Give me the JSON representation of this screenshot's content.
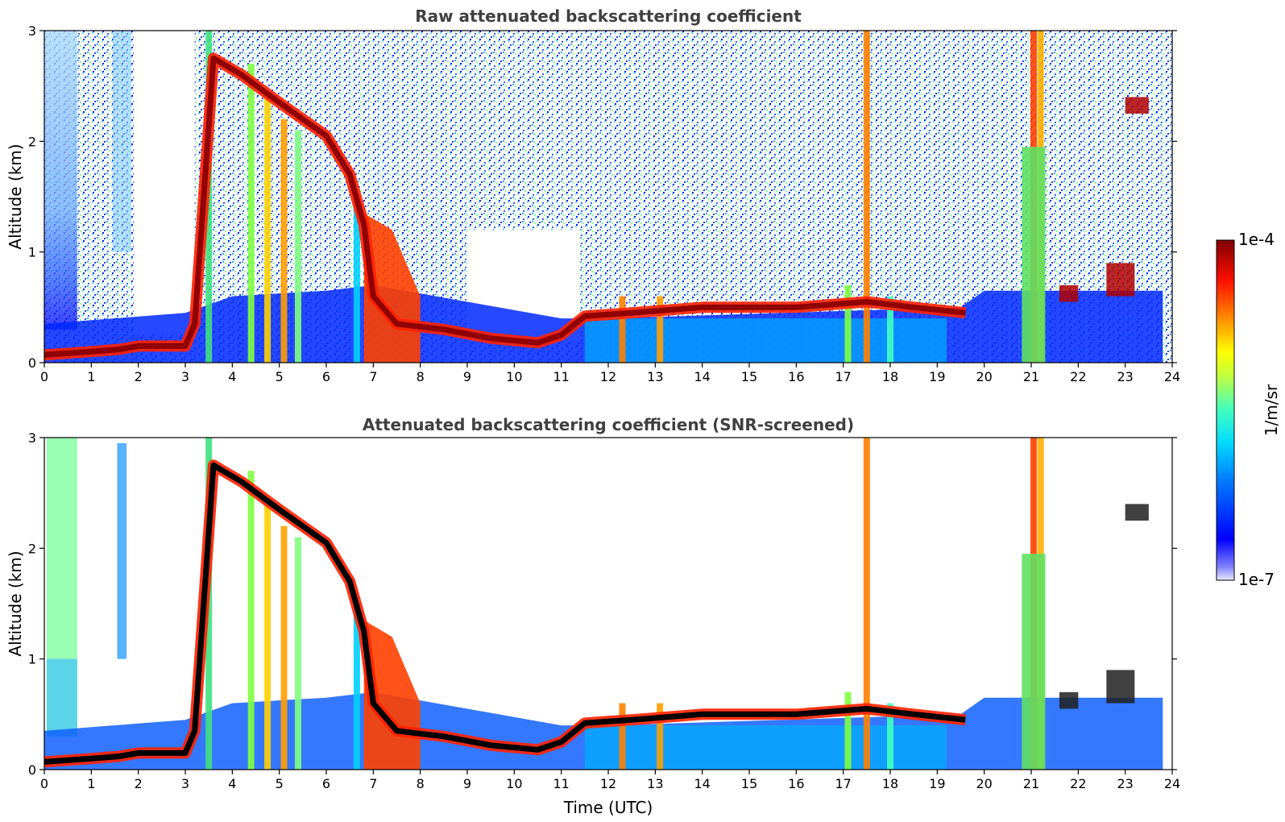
{
  "chart_data": [
    {
      "type": "heatmap",
      "title": "Raw attenuated backscattering coefficient",
      "xlabel": "",
      "ylabel": "Altitude (km)",
      "xlim": [
        0,
        24
      ],
      "ylim": [
        0,
        3
      ],
      "xticks": [
        0,
        1,
        2,
        3,
        4,
        5,
        6,
        7,
        8,
        9,
        10,
        11,
        12,
        13,
        14,
        15,
        16,
        17,
        18,
        19,
        20,
        21,
        22,
        23,
        24
      ],
      "yticks": [
        0,
        1,
        2,
        3
      ],
      "screened": false,
      "cloud_layer_km": [
        [
          0.0,
          0.07
        ],
        [
          1.0,
          0.1
        ],
        [
          1.6,
          0.12
        ],
        [
          2.0,
          0.15
        ],
        [
          3.0,
          0.15
        ],
        [
          3.2,
          0.35
        ],
        [
          3.6,
          2.75
        ],
        [
          4.2,
          2.6
        ],
        [
          5.0,
          2.35
        ],
        [
          6.0,
          2.05
        ],
        [
          6.5,
          1.7
        ],
        [
          6.8,
          1.25
        ],
        [
          7.0,
          0.6
        ],
        [
          7.5,
          0.35
        ],
        [
          8.5,
          0.3
        ],
        [
          9.5,
          0.22
        ],
        [
          10.5,
          0.18
        ],
        [
          11.0,
          0.25
        ],
        [
          11.5,
          0.42
        ],
        [
          12.5,
          0.45
        ],
        [
          14.0,
          0.5
        ],
        [
          16.0,
          0.5
        ],
        [
          17.5,
          0.55
        ],
        [
          18.5,
          0.5
        ],
        [
          19.6,
          0.45
        ]
      ]
    },
    {
      "type": "heatmap",
      "title": "Attenuated backscattering coefficient (SNR-screened)",
      "xlabel": "Time (UTC)",
      "ylabel": "Altitude (km)",
      "xlim": [
        0,
        24
      ],
      "ylim": [
        0,
        3
      ],
      "xticks": [
        0,
        1,
        2,
        3,
        4,
        5,
        6,
        7,
        8,
        9,
        10,
        11,
        12,
        13,
        14,
        15,
        16,
        17,
        18,
        19,
        20,
        21,
        22,
        23,
        24
      ],
      "yticks": [
        0,
        1,
        2,
        3
      ],
      "screened": true
    }
  ],
  "colorbar": {
    "label": "1/m/sr",
    "max_label": "1e-4",
    "min_label": "1e-7",
    "colormap": "jet",
    "colors": [
      "#e8e8ff",
      "#0000ff",
      "#00a0ff",
      "#00ffff",
      "#80ff80",
      "#ffff00",
      "#ff8000",
      "#ff0000",
      "#800000"
    ]
  }
}
